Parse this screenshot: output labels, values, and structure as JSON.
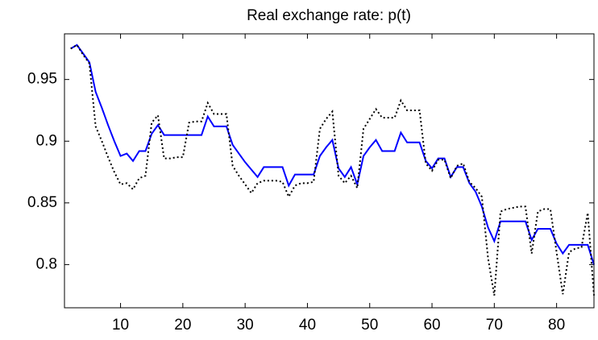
{
  "chart_data": {
    "type": "line",
    "title": "Real exchange rate: p(t)",
    "x": [
      2,
      3,
      4,
      5,
      6,
      7,
      8,
      9,
      10,
      11,
      12,
      13,
      14,
      15,
      16,
      17,
      18,
      19,
      20,
      21,
      22,
      23,
      24,
      25,
      26,
      27,
      28,
      29,
      30,
      31,
      32,
      33,
      34,
      35,
      36,
      37,
      38,
      39,
      40,
      41,
      42,
      43,
      44,
      45,
      46,
      47,
      48,
      49,
      50,
      51,
      52,
      53,
      54,
      55,
      56,
      57,
      58,
      59,
      60,
      61,
      62,
      63,
      64,
      65,
      66,
      67,
      68,
      69,
      70,
      71,
      72,
      73,
      74,
      75,
      76,
      77,
      78,
      79,
      80,
      81,
      82,
      83,
      84,
      85,
      86
    ],
    "series": [
      {
        "color": "#0000ff",
        "dash": "solid",
        "values": [
          0.975,
          0.978,
          0.971,
          0.964,
          0.94,
          0.927,
          0.913,
          0.9,
          0.888,
          0.89,
          0.884,
          0.892,
          0.892,
          0.906,
          0.913,
          0.905,
          0.905,
          0.905,
          0.905,
          0.905,
          0.905,
          0.905,
          0.92,
          0.912,
          0.912,
          0.912,
          0.897,
          0.89,
          0.883,
          0.877,
          0.871,
          0.879,
          0.879,
          0.879,
          0.879,
          0.864,
          0.873,
          0.873,
          0.873,
          0.873,
          0.888,
          0.895,
          0.901,
          0.878,
          0.871,
          0.879,
          0.865,
          0.888,
          0.895,
          0.901,
          0.892,
          0.892,
          0.892,
          0.907,
          0.899,
          0.899,
          0.899,
          0.884,
          0.878,
          0.886,
          0.886,
          0.871,
          0.879,
          0.879,
          0.866,
          0.859,
          0.847,
          0.83,
          0.819,
          0.835,
          0.835,
          0.835,
          0.835,
          0.835,
          0.82,
          0.829,
          0.829,
          0.829,
          0.817,
          0.809,
          0.816,
          0.816,
          0.816,
          0.816,
          0.8
        ]
      },
      {
        "color": "#000000",
        "dash": "dotted",
        "values": [
          0.975,
          0.978,
          0.97,
          0.963,
          0.912,
          0.9,
          0.887,
          0.875,
          0.865,
          0.866,
          0.861,
          0.87,
          0.872,
          0.915,
          0.921,
          0.886,
          0.886,
          0.887,
          0.887,
          0.915,
          0.916,
          0.916,
          0.931,
          0.922,
          0.922,
          0.922,
          0.88,
          0.872,
          0.865,
          0.858,
          0.866,
          0.868,
          0.868,
          0.868,
          0.867,
          0.855,
          0.864,
          0.866,
          0.866,
          0.867,
          0.91,
          0.918,
          0.924,
          0.872,
          0.866,
          0.872,
          0.862,
          0.91,
          0.918,
          0.926,
          0.919,
          0.919,
          0.919,
          0.933,
          0.925,
          0.925,
          0.925,
          0.882,
          0.876,
          0.885,
          0.885,
          0.87,
          0.88,
          0.882,
          0.867,
          0.862,
          0.855,
          0.805,
          0.775,
          0.843,
          0.845,
          0.846,
          0.847,
          0.847,
          0.809,
          0.843,
          0.845,
          0.845,
          0.81,
          0.776,
          0.81,
          0.813,
          0.814,
          0.842,
          0.775
        ]
      }
    ],
    "xlim": [
      1,
      86
    ],
    "xticks": [
      10,
      20,
      30,
      40,
      50,
      60,
      70,
      80
    ],
    "ylim": [
      0.765,
      0.987
    ],
    "yticks": [
      0.8,
      0.85,
      0.9,
      0.95
    ]
  }
}
